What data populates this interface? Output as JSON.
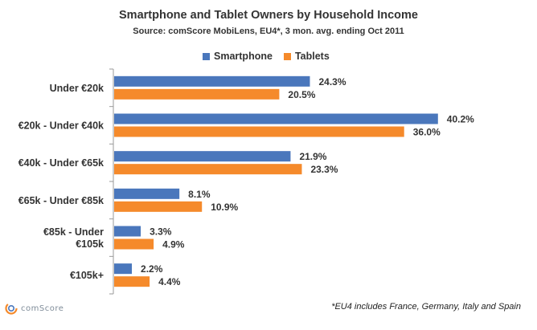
{
  "chart_data": {
    "type": "bar",
    "orientation": "horizontal",
    "title": "Smartphone and Tablet Owners by Household Income",
    "subtitle": "Source: comScore MobiLens, EU4*, 3 mon. avg. ending Oct 2011",
    "categories": [
      [
        "Under €20k"
      ],
      [
        "€20k - Under €40k"
      ],
      [
        "€40k - Under €65k"
      ],
      [
        "€65k - Under €85k"
      ],
      [
        "€85k - Under",
        "€105k"
      ],
      [
        "€105k+"
      ]
    ],
    "series": [
      {
        "name": "Smartphone",
        "color": "#4a77bc",
        "values": [
          24.3,
          40.2,
          21.9,
          8.1,
          3.3,
          2.2
        ],
        "labels": [
          "24.3%",
          "40.2%",
          "21.9%",
          "8.1%",
          "3.3%",
          "2.2%"
        ]
      },
      {
        "name": "Tablets",
        "color": "#f58a2b",
        "values": [
          20.5,
          36.0,
          23.3,
          10.9,
          4.9,
          4.4
        ],
        "labels": [
          "20.5%",
          "36.0%",
          "23.3%",
          "10.9%",
          "4.9%",
          "4.4%"
        ]
      }
    ],
    "xlim": [
      0,
      50
    ],
    "grid": false,
    "legend_position": "top-center"
  },
  "footnote": "*EU4 includes France, Germany, Italy and Spain",
  "brand": {
    "name": "comScore",
    "logo_icon": "comscore-logo-icon"
  }
}
